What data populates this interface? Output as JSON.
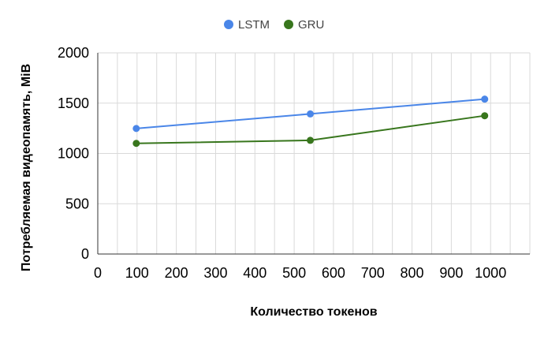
{
  "chart_data": {
    "type": "line",
    "title": "",
    "xlabel": "Количество  токенов",
    "ylabel": "Потребляемая видеопамять, MiB",
    "xlim": [
      0,
      1100
    ],
    "ylim": [
      0,
      2000
    ],
    "x_ticks": [
      0,
      100,
      200,
      300,
      400,
      500,
      600,
      700,
      800,
      900,
      1000
    ],
    "y_ticks": [
      0,
      500,
      1000,
      1500,
      2000
    ],
    "grid": true,
    "legend_position": "top",
    "series": [
      {
        "name": "LSTM",
        "color": "#4a86e8",
        "points": [
          {
            "x": 98,
            "y": 1248
          },
          {
            "x": 541,
            "y": 1393
          },
          {
            "x": 985,
            "y": 1540
          }
        ]
      },
      {
        "name": "GRU",
        "color": "#38761d",
        "points": [
          {
            "x": 98,
            "y": 1100
          },
          {
            "x": 541,
            "y": 1130
          },
          {
            "x": 985,
            "y": 1375
          }
        ]
      }
    ]
  }
}
